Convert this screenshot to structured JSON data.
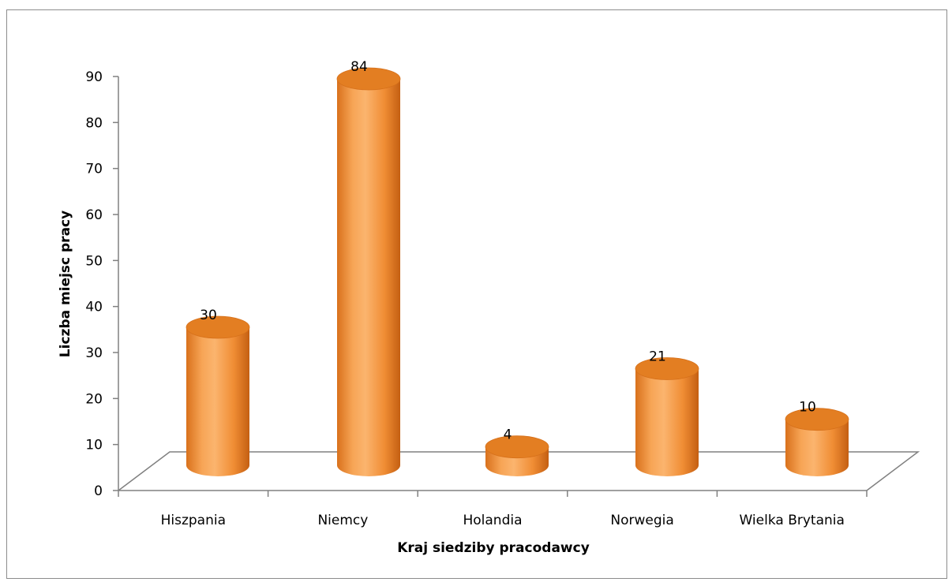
{
  "chart_data": {
    "type": "bar",
    "title": "",
    "xlabel": "Kraj siedziby pracodawcy",
    "ylabel": "Liczba miejsc pracy",
    "categories": [
      "Hiszpania",
      "Niemcy",
      "Holandia",
      "Norwegia",
      "Wielka Brytania"
    ],
    "values": [
      30,
      84,
      4,
      21,
      10
    ],
    "ylim": [
      0,
      90
    ],
    "yticks": [
      "0",
      "10",
      "20",
      "30",
      "40",
      "50",
      "60",
      "70",
      "80",
      "90"
    ],
    "data_labels": [
      "30",
      "84",
      "4",
      "21",
      "10"
    ],
    "style": "3d-cylinder",
    "grid": false,
    "legend": "none",
    "colors": {
      "bar": "#f2933a",
      "bar_dark": "#c96414",
      "bar_light": "#fbb46e",
      "top": "#e37e22",
      "axis": "#808080"
    }
  }
}
